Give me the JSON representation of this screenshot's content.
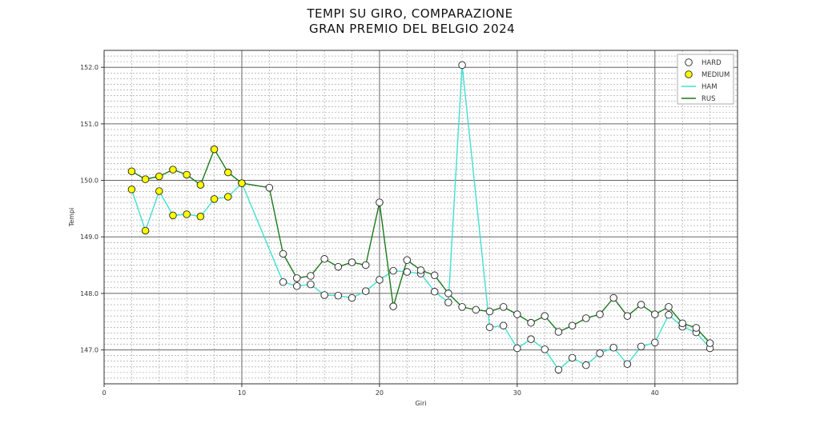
{
  "chart_data": {
    "type": "line",
    "title_line1": "TEMPI SU GIRO, COMPARAZIONE",
    "title_line2": " GRAN PREMIO DEL BELGIO 2024",
    "xlabel": "Giri",
    "ylabel": "Tempi",
    "xlim": [
      0,
      46
    ],
    "ylim": [
      146.4,
      152.3
    ],
    "xticks": [
      0,
      10,
      20,
      30,
      40
    ],
    "yticks": [
      147.0,
      148.0,
      149.0,
      150.0,
      151.0,
      152.0
    ],
    "ytick_labels": [
      "147.0",
      "148.0",
      "149.0",
      "150.0",
      "151.0",
      "152.0"
    ],
    "grid": true,
    "legend_position": "top-right",
    "legend": [
      {
        "label": "HARD",
        "kind": "marker",
        "color": "#ffffff"
      },
      {
        "label": "MEDIUM",
        "kind": "marker",
        "color": "#ffff00"
      },
      {
        "label": "HAM",
        "kind": "line",
        "color": "#40e0d0"
      },
      {
        "label": "RUS",
        "kind": "line",
        "color": "#1a7a1a"
      }
    ],
    "series": [
      {
        "name": "HAM",
        "color": "#40e0d0",
        "x": [
          2,
          3,
          4,
          5,
          6,
          7,
          8,
          9,
          10,
          13,
          14,
          15,
          16,
          17,
          18,
          19,
          20,
          21,
          22,
          23,
          24,
          25,
          26,
          28,
          29,
          30,
          31,
          32,
          33,
          34,
          35,
          36,
          37,
          38,
          39,
          40,
          41,
          42,
          43,
          44
        ],
        "y": [
          149.84,
          149.11,
          149.81,
          149.38,
          149.4,
          149.36,
          149.67,
          149.71,
          149.95,
          148.2,
          148.13,
          148.16,
          147.97,
          147.96,
          147.92,
          148.04,
          148.24,
          148.4,
          148.38,
          148.35,
          148.03,
          147.84,
          152.04,
          147.4,
          147.43,
          147.03,
          147.19,
          147.01,
          146.65,
          146.86,
          146.73,
          146.94,
          147.04,
          146.75,
          147.06,
          147.13,
          147.62,
          147.41,
          147.31,
          147.03
        ],
        "compound": [
          "MEDIUM",
          "MEDIUM",
          "MEDIUM",
          "MEDIUM",
          "MEDIUM",
          "MEDIUM",
          "MEDIUM",
          "MEDIUM",
          "MEDIUM",
          "HARD",
          "HARD",
          "HARD",
          "HARD",
          "HARD",
          "HARD",
          "HARD",
          "HARD",
          "HARD",
          "HARD",
          "HARD",
          "HARD",
          "HARD",
          "HARD",
          "HARD",
          "HARD",
          "HARD",
          "HARD",
          "HARD",
          "HARD",
          "HARD",
          "HARD",
          "HARD",
          "HARD",
          "HARD",
          "HARD",
          "HARD",
          "HARD",
          "HARD",
          "HARD",
          "HARD"
        ]
      },
      {
        "name": "RUS",
        "color": "#1a7a1a",
        "x": [
          2,
          3,
          4,
          5,
          6,
          7,
          8,
          9,
          10,
          12,
          13,
          14,
          15,
          16,
          17,
          18,
          19,
          20,
          21,
          22,
          23,
          24,
          25,
          26,
          27,
          28,
          29,
          30,
          31,
          32,
          33,
          34,
          35,
          36,
          37,
          38,
          39,
          40,
          41,
          42,
          43,
          44
        ],
        "y": [
          150.16,
          150.02,
          150.07,
          150.19,
          150.1,
          149.92,
          150.55,
          150.14,
          149.95,
          149.87,
          148.7,
          148.27,
          148.31,
          148.61,
          148.47,
          148.55,
          148.5,
          149.61,
          147.77,
          148.59,
          148.41,
          148.32,
          148.0,
          147.76,
          147.71,
          147.68,
          147.76,
          147.63,
          147.48,
          147.6,
          147.32,
          147.43,
          147.56,
          147.63,
          147.92,
          147.6,
          147.8,
          147.63,
          147.76,
          147.47,
          147.39,
          147.12
        ],
        "compound": [
          "MEDIUM",
          "MEDIUM",
          "MEDIUM",
          "MEDIUM",
          "MEDIUM",
          "MEDIUM",
          "MEDIUM",
          "MEDIUM",
          "MEDIUM",
          "HARD",
          "HARD",
          "HARD",
          "HARD",
          "HARD",
          "HARD",
          "HARD",
          "HARD",
          "HARD",
          "HARD",
          "HARD",
          "HARD",
          "HARD",
          "HARD",
          "HARD",
          "HARD",
          "HARD",
          "HARD",
          "HARD",
          "HARD",
          "HARD",
          "HARD",
          "HARD",
          "HARD",
          "HARD",
          "HARD",
          "HARD",
          "HARD",
          "HARD",
          "HARD",
          "HARD",
          "HARD",
          "HARD"
        ]
      }
    ],
    "compound_colors": {
      "HARD": "#ffffff",
      "MEDIUM": "#ffff00"
    }
  }
}
